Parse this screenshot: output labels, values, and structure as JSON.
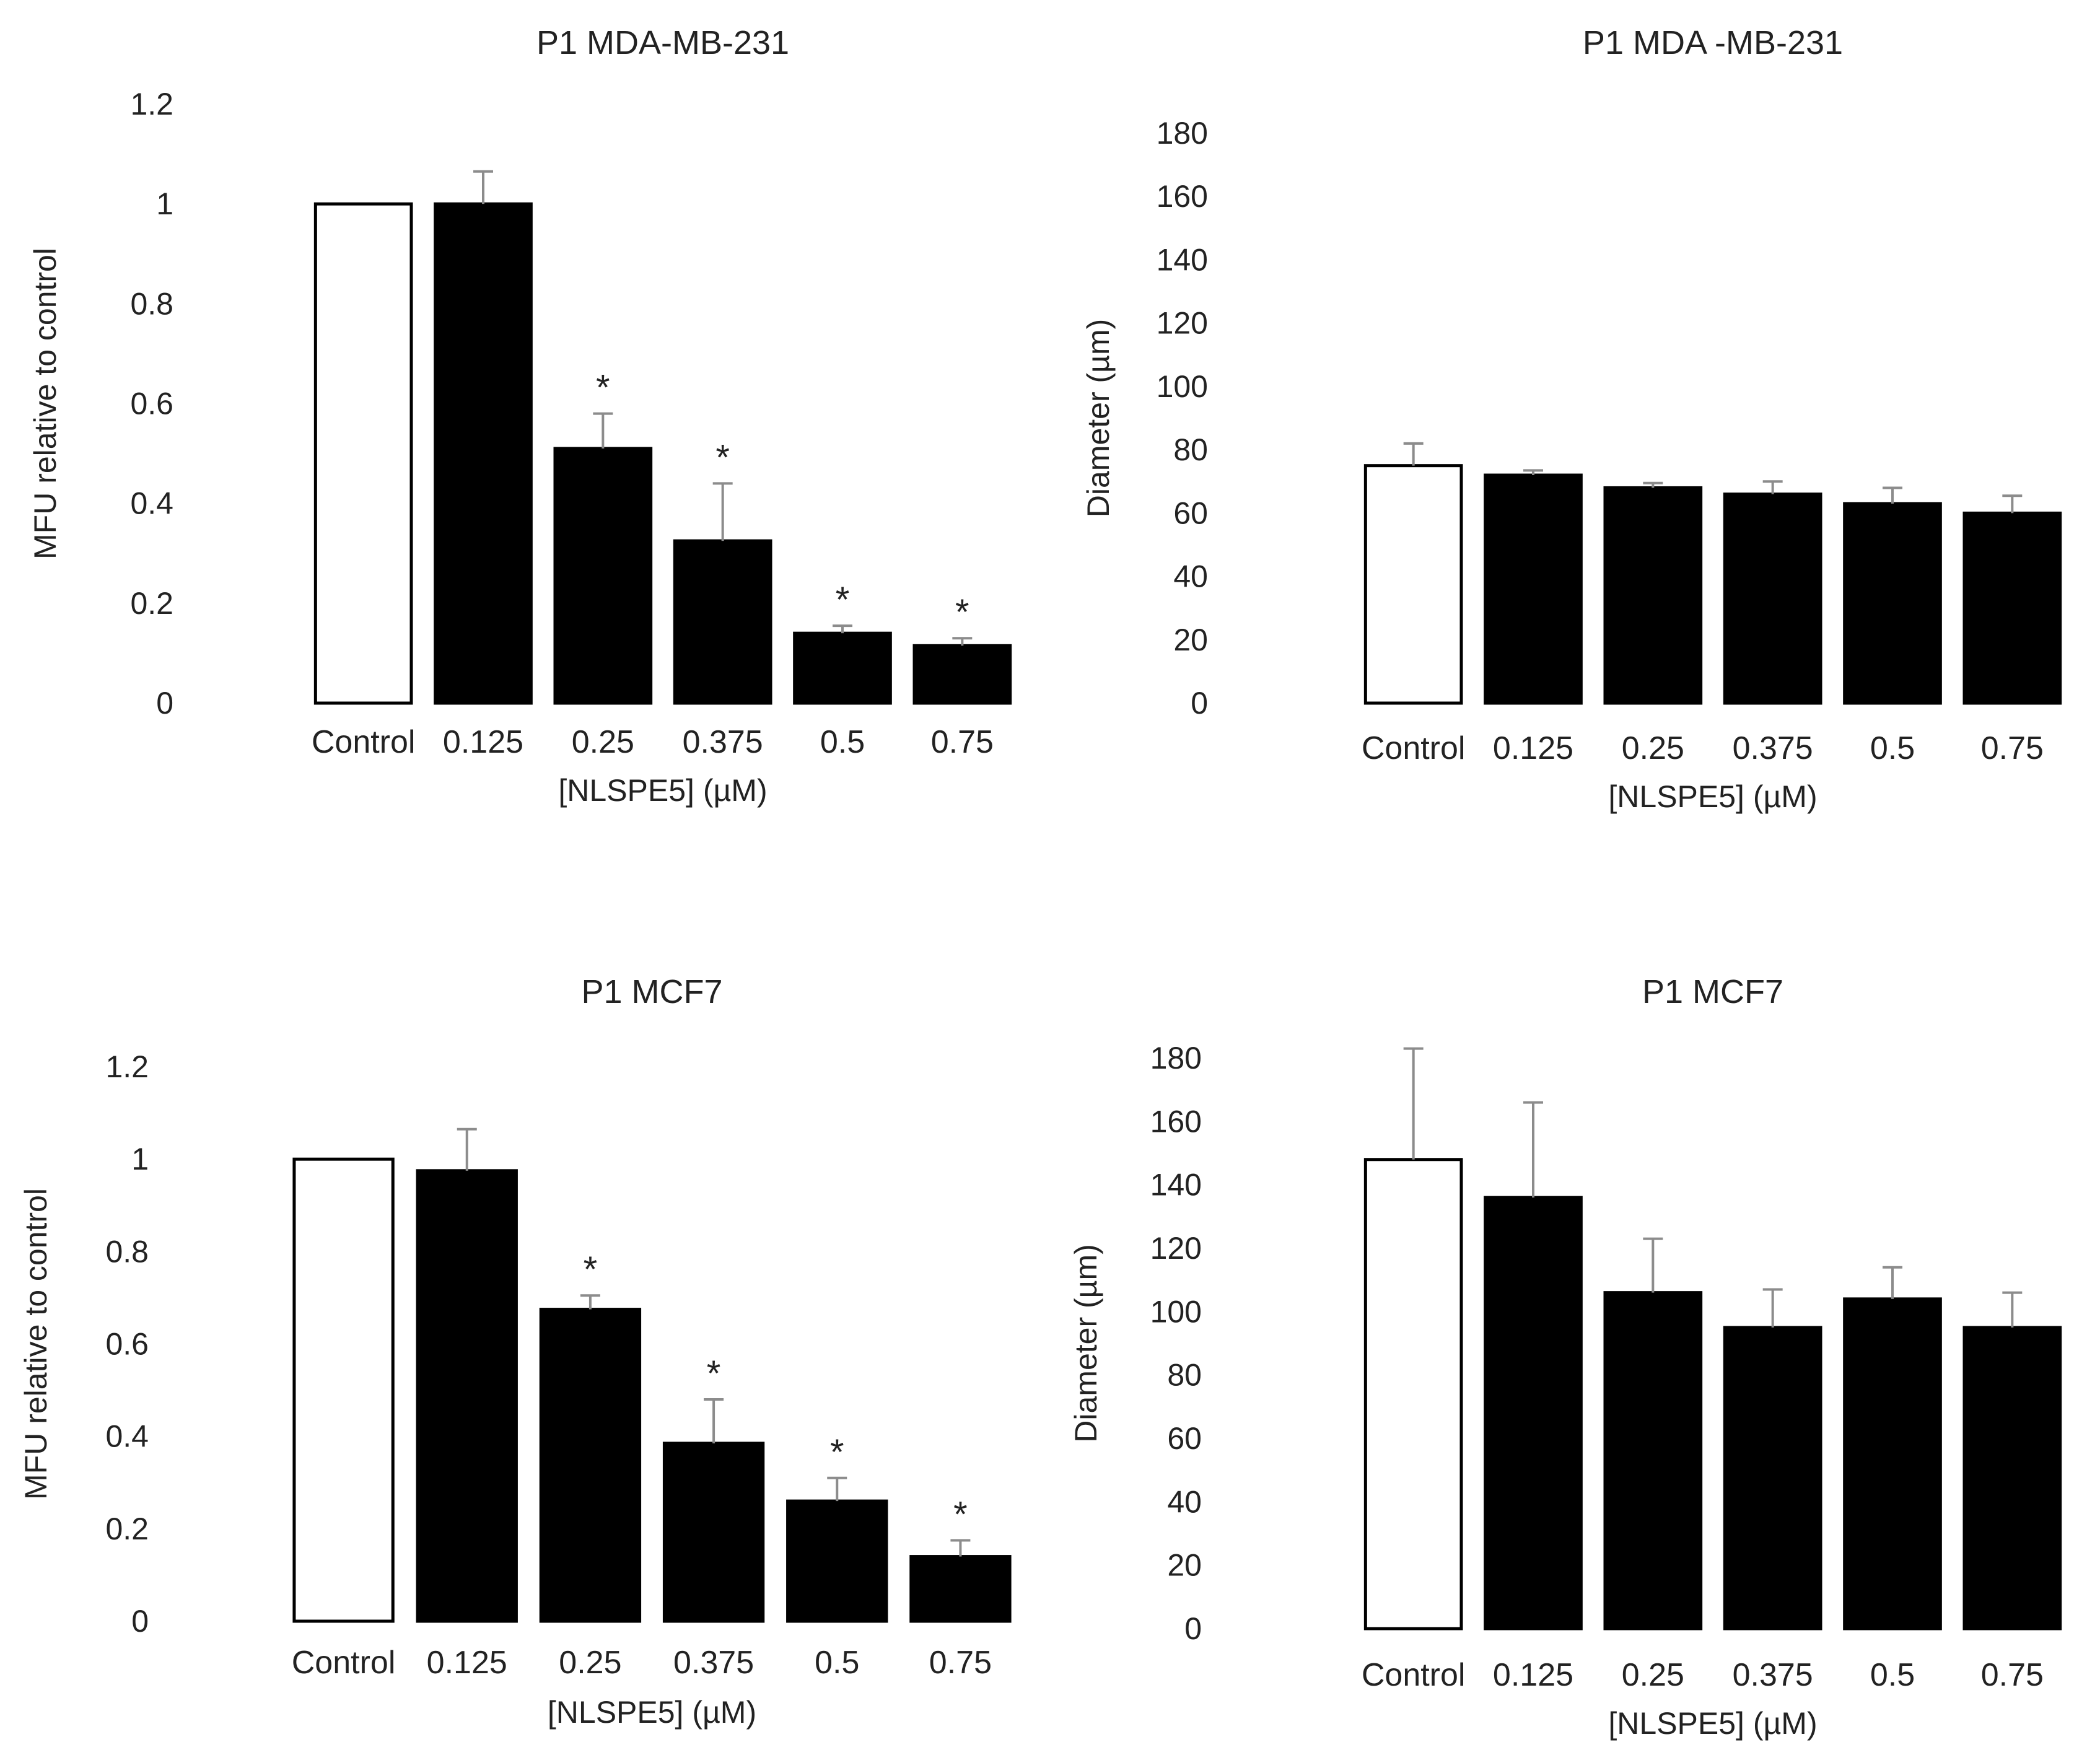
{
  "figure": {
    "background": "#ffffff",
    "bar_color": "#000000",
    "control_fill": "#ffffff",
    "error_bar_color": "#8c8c8c"
  },
  "chart_data": [
    {
      "type": "bar",
      "title": "P1 MDA-MB-231",
      "xlabel": "[NLSPE5] (µM)",
      "ylabel": "MFU relative to control",
      "categories": [
        "Control",
        "0.125",
        "0.25",
        "0.375",
        "0.5",
        "0.75"
      ],
      "values": [
        1.0,
        1.0,
        0.51,
        0.325,
        0.14,
        0.115
      ],
      "errors": [
        0.0,
        0.065,
        0.07,
        0.115,
        0.015,
        0.015
      ],
      "significance": [
        "",
        "",
        "*",
        "*",
        "*",
        "*"
      ],
      "ylim": [
        0,
        1.2
      ],
      "yticks": [
        0,
        0.2,
        0.4,
        0.6,
        0.8,
        1,
        1.2
      ],
      "ytick_labels": [
        "0",
        "0.2",
        "0.4",
        "0.6",
        "0.8",
        "1",
        "1.2"
      ],
      "grid": false
    },
    {
      "type": "bar",
      "title": "P1 MDA -MB-231",
      "xlabel": "[NLSPE5] (µM)",
      "ylabel": "Diameter (µm)",
      "categories": [
        "Control",
        "0.125",
        "0.25",
        "0.375",
        "0.5",
        "0.75"
      ],
      "values": [
        75,
        72,
        68,
        66,
        63,
        60
      ],
      "errors": [
        7,
        1.5,
        1.5,
        4,
        5,
        5.5
      ],
      "significance": [
        "",
        "",
        "",
        "",
        "",
        ""
      ],
      "ylim": [
        0,
        180
      ],
      "yticks": [
        0,
        20,
        40,
        60,
        80,
        100,
        120,
        140,
        160,
        180
      ],
      "ytick_labels": [
        "0",
        "20",
        "40",
        "60",
        "80",
        "100",
        "120",
        "140",
        "160",
        "180"
      ],
      "grid": false
    },
    {
      "type": "bar",
      "title": "P1 MCF7",
      "xlabel": "[NLSPE5] (µM)",
      "ylabel": "MFU relative to control",
      "categories": [
        "Control",
        "0.125",
        "0.25",
        "0.375",
        "0.5",
        "0.75"
      ],
      "values": [
        1.0,
        0.975,
        0.675,
        0.385,
        0.26,
        0.14
      ],
      "errors": [
        0.0,
        0.09,
        0.03,
        0.095,
        0.05,
        0.035
      ],
      "significance": [
        "",
        "",
        "*",
        "*",
        "*",
        "*"
      ],
      "ylim": [
        0,
        1.2
      ],
      "yticks": [
        0,
        0.2,
        0.4,
        0.6,
        0.8,
        1,
        1.2
      ],
      "ytick_labels": [
        "0",
        "0.2",
        "0.4",
        "0.6",
        "0.8",
        "1",
        "1.2"
      ],
      "grid": false
    },
    {
      "type": "bar",
      "title": "P1 MCF7",
      "xlabel": "[NLSPE5] (µM)",
      "ylabel": "Diameter (µm)",
      "categories": [
        "Control",
        "0.125",
        "0.25",
        "0.375",
        "0.5",
        "0.75"
      ],
      "values": [
        148,
        136,
        106,
        95,
        104,
        95
      ],
      "errors": [
        35,
        30,
        17,
        12,
        10,
        11
      ],
      "significance": [
        "",
        "",
        "",
        "",
        "",
        ""
      ],
      "ylim": [
        0,
        180
      ],
      "yticks": [
        0,
        20,
        40,
        60,
        80,
        100,
        120,
        140,
        160,
        180
      ],
      "ytick_labels": [
        "0",
        "20",
        "40",
        "60",
        "80",
        "100",
        "120",
        "140",
        "160",
        "180"
      ],
      "grid": false
    }
  ]
}
